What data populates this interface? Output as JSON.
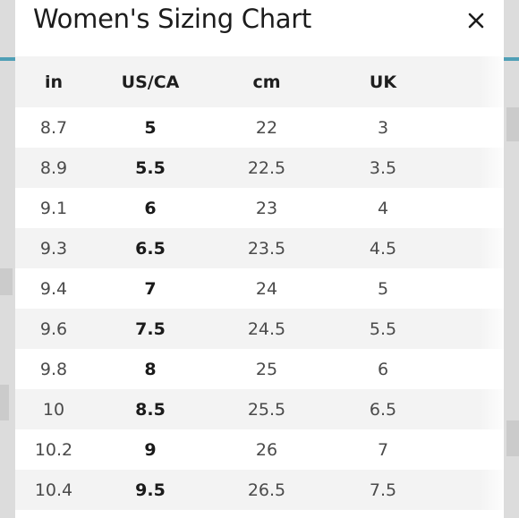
{
  "modal": {
    "title": "Women's Sizing Chart",
    "close_icon": "close-icon"
  },
  "table": {
    "headers": [
      "in",
      "US/CA",
      "cm",
      "UK"
    ],
    "rows": [
      [
        "8.7",
        "5",
        "22",
        "3"
      ],
      [
        "8.9",
        "5.5",
        "22.5",
        "3.5"
      ],
      [
        "9.1",
        "6",
        "23",
        "4"
      ],
      [
        "9.3",
        "6.5",
        "23.5",
        "4.5"
      ],
      [
        "9.4",
        "7",
        "24",
        "5"
      ],
      [
        "9.6",
        "7.5",
        "24.5",
        "5.5"
      ],
      [
        "9.8",
        "8",
        "25",
        "6"
      ],
      [
        "10",
        "8.5",
        "25.5",
        "6.5"
      ],
      [
        "10.2",
        "9",
        "26",
        "7"
      ],
      [
        "10.4",
        "9.5",
        "26.5",
        "7.5"
      ]
    ]
  },
  "colors": {
    "accent_line": "#4f9fb6",
    "row_stripe": "#f3f3f3",
    "text_dark": "#1c1c1c"
  }
}
